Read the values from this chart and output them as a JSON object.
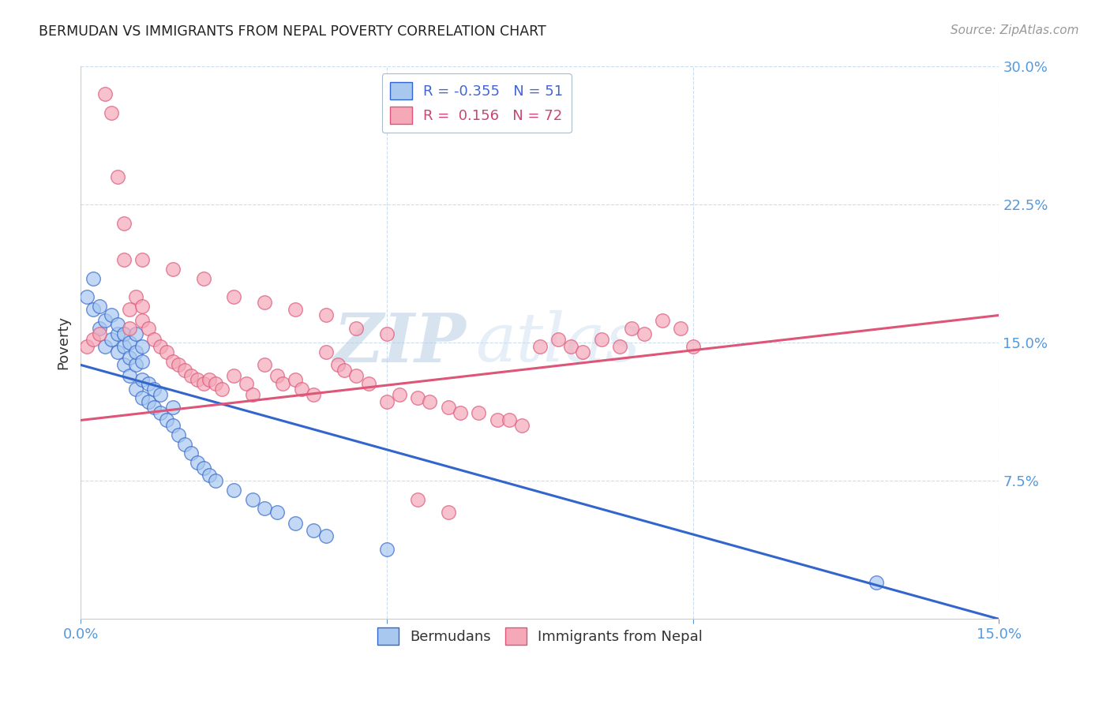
{
  "title": "BERMUDAN VS IMMIGRANTS FROM NEPAL POVERTY CORRELATION CHART",
  "source": "Source: ZipAtlas.com",
  "ylabel": "Poverty",
  "xlim": [
    0.0,
    0.15
  ],
  "ylim": [
    0.0,
    0.3
  ],
  "color_blue": "#A8C8F0",
  "color_pink": "#F4A8B8",
  "color_blue_line": "#3366CC",
  "color_pink_line": "#DD5577",
  "watermark_zip": "ZIP",
  "watermark_atlas": "atlas",
  "blue_intercept": 0.138,
  "blue_slope": -0.92,
  "pink_intercept": 0.108,
  "pink_slope": 0.38,
  "bermudans_x": [
    0.001,
    0.002,
    0.002,
    0.003,
    0.003,
    0.004,
    0.004,
    0.005,
    0.005,
    0.006,
    0.006,
    0.006,
    0.007,
    0.007,
    0.007,
    0.008,
    0.008,
    0.008,
    0.009,
    0.009,
    0.009,
    0.009,
    0.01,
    0.01,
    0.01,
    0.01,
    0.011,
    0.011,
    0.012,
    0.012,
    0.013,
    0.013,
    0.014,
    0.015,
    0.015,
    0.016,
    0.017,
    0.018,
    0.019,
    0.02,
    0.021,
    0.022,
    0.025,
    0.028,
    0.03,
    0.032,
    0.035,
    0.038,
    0.04,
    0.05,
    0.13
  ],
  "bermudans_y": [
    0.175,
    0.168,
    0.185,
    0.158,
    0.17,
    0.148,
    0.162,
    0.152,
    0.165,
    0.145,
    0.155,
    0.16,
    0.138,
    0.148,
    0.155,
    0.132,
    0.142,
    0.15,
    0.125,
    0.138,
    0.145,
    0.155,
    0.12,
    0.13,
    0.14,
    0.148,
    0.118,
    0.128,
    0.115,
    0.125,
    0.112,
    0.122,
    0.108,
    0.105,
    0.115,
    0.1,
    0.095,
    0.09,
    0.085,
    0.082,
    0.078,
    0.075,
    0.07,
    0.065,
    0.06,
    0.058,
    0.052,
    0.048,
    0.045,
    0.038,
    0.02
  ],
  "nepal_x": [
    0.001,
    0.002,
    0.003,
    0.004,
    0.005,
    0.006,
    0.007,
    0.007,
    0.008,
    0.008,
    0.009,
    0.01,
    0.01,
    0.011,
    0.012,
    0.013,
    0.014,
    0.015,
    0.016,
    0.017,
    0.018,
    0.019,
    0.02,
    0.021,
    0.022,
    0.023,
    0.025,
    0.027,
    0.028,
    0.03,
    0.032,
    0.033,
    0.035,
    0.036,
    0.038,
    0.04,
    0.042,
    0.043,
    0.045,
    0.047,
    0.05,
    0.052,
    0.055,
    0.057,
    0.06,
    0.062,
    0.065,
    0.068,
    0.07,
    0.072,
    0.075,
    0.078,
    0.08,
    0.082,
    0.085,
    0.088,
    0.09,
    0.092,
    0.095,
    0.098,
    0.1,
    0.01,
    0.015,
    0.02,
    0.025,
    0.03,
    0.035,
    0.04,
    0.045,
    0.05,
    0.055,
    0.06
  ],
  "nepal_y": [
    0.148,
    0.152,
    0.155,
    0.285,
    0.275,
    0.24,
    0.215,
    0.195,
    0.168,
    0.158,
    0.175,
    0.17,
    0.162,
    0.158,
    0.152,
    0.148,
    0.145,
    0.14,
    0.138,
    0.135,
    0.132,
    0.13,
    0.128,
    0.13,
    0.128,
    0.125,
    0.132,
    0.128,
    0.122,
    0.138,
    0.132,
    0.128,
    0.13,
    0.125,
    0.122,
    0.145,
    0.138,
    0.135,
    0.132,
    0.128,
    0.118,
    0.122,
    0.12,
    0.118,
    0.115,
    0.112,
    0.112,
    0.108,
    0.108,
    0.105,
    0.148,
    0.152,
    0.148,
    0.145,
    0.152,
    0.148,
    0.158,
    0.155,
    0.162,
    0.158,
    0.148,
    0.195,
    0.19,
    0.185,
    0.175,
    0.172,
    0.168,
    0.165,
    0.158,
    0.155,
    0.065,
    0.058
  ]
}
